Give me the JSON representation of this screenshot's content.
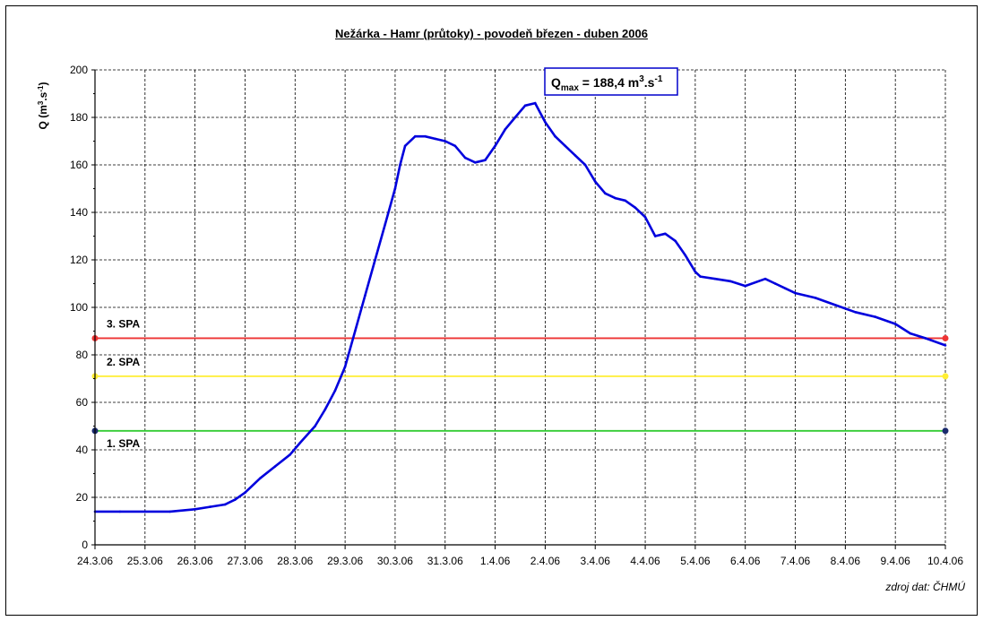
{
  "chart_data": {
    "type": "line",
    "title": "Nežárka - Hamr (průtoky) - povodeň březen - duben 2006",
    "ylabel_main": "Q (m",
    "ylabel_sup1": "3",
    "ylabel_mid": ".s",
    "ylabel_sup2": "-1",
    "ylabel_end": ")",
    "xlabel": "",
    "ylim": [
      0,
      200
    ],
    "yticks": [
      0,
      20,
      40,
      60,
      80,
      100,
      120,
      140,
      160,
      180,
      200
    ],
    "xlim": [
      0,
      17
    ],
    "xticks": [
      "24.3.06",
      "25.3.06",
      "26.3.06",
      "27.3.06",
      "28.3.06",
      "29.3.06",
      "30.3.06",
      "31.3.06",
      "1.4.06",
      "2.4.06",
      "3.4.06",
      "4.4.06",
      "5.4.06",
      "6.4.06",
      "7.4.06",
      "8.4.06",
      "9.4.06",
      "10.4.06"
    ],
    "grid": true,
    "series": [
      {
        "color": "#0000dd",
        "x": [
          0,
          0.5,
          1,
          1.5,
          2,
          2.3,
          2.6,
          2.8,
          3,
          3.3,
          3.6,
          3.9,
          4.1,
          4.4,
          4.6,
          4.8,
          5.0,
          5.2,
          5.4,
          5.6,
          5.8,
          6.0,
          6.1,
          6.2,
          6.4,
          6.6,
          6.8,
          7.0,
          7.2,
          7.4,
          7.6,
          7.8,
          8.0,
          8.2,
          8.4,
          8.6,
          8.8,
          9.0,
          9.2,
          9.4,
          9.6,
          9.8,
          10.0,
          10.2,
          10.4,
          10.6,
          10.8,
          11.0,
          11.2,
          11.4,
          11.6,
          11.8,
          12.0,
          12.1,
          12.4,
          12.7,
          13.0,
          13.4,
          13.6,
          13.8,
          14.0,
          14.4,
          14.8,
          15.2,
          15.6,
          16.0,
          16.3,
          16.6,
          17.0
        ],
        "y": [
          14,
          14,
          14,
          14,
          15,
          16,
          17,
          19,
          22,
          28,
          33,
          38,
          43,
          50,
          57,
          65,
          75,
          90,
          105,
          120,
          135,
          150,
          160,
          168,
          172,
          172,
          171,
          170,
          168,
          163,
          161,
          162,
          168,
          175,
          180,
          185,
          186,
          178,
          172,
          168,
          164,
          160,
          153,
          148,
          146,
          145,
          142,
          138,
          130,
          131,
          128,
          122,
          115,
          113,
          112,
          111,
          109,
          112,
          110,
          108,
          106,
          104,
          101,
          98,
          96,
          93,
          89,
          87,
          84
        ]
      }
    ],
    "reference_lines": [
      {
        "label": "1. SPA",
        "value": 48,
        "color": "#33cc33"
      },
      {
        "label": "2. SPA",
        "value": 71,
        "color": "#ffee33"
      },
      {
        "label": "3. SPA",
        "value": 87,
        "color": "#ee3333"
      }
    ],
    "annotation_q": "Q",
    "annotation_sub": "max",
    "annotation_value": " = 188,4 m",
    "annotation_sup1": "3",
    "annotation_mid": ".s",
    "annotation_sup2": "-1",
    "source": "zdroj dat: ČHMÚ"
  }
}
